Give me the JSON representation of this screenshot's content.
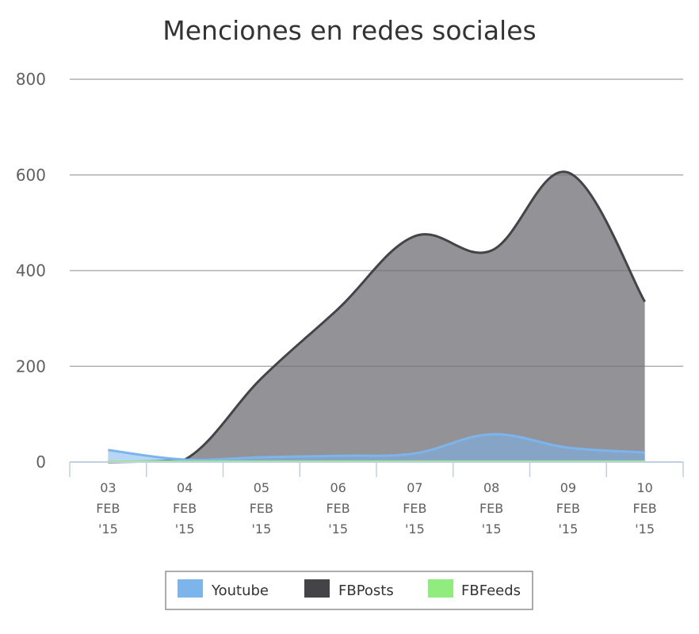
{
  "chart_data": {
    "type": "area",
    "title": "Menciones en redes sociales",
    "xlabel": "",
    "ylabel": "",
    "ylim": [
      0,
      800
    ],
    "yticks": [
      0,
      200,
      400,
      600,
      800
    ],
    "categories": [
      [
        "03",
        "FEB",
        "'15"
      ],
      [
        "04",
        "FEB",
        "'15"
      ],
      [
        "05",
        "FEB",
        "'15"
      ],
      [
        "06",
        "FEB",
        "'15"
      ],
      [
        "07",
        "FEB",
        "'15"
      ],
      [
        "08",
        "FEB",
        "'15"
      ],
      [
        "09",
        "FEB",
        "'15"
      ],
      [
        "10",
        "FEB",
        "'15"
      ]
    ],
    "series": [
      {
        "name": "FBPosts",
        "color": "#434348",
        "fill": "#6f6e74",
        "values": [
          0,
          5,
          175,
          320,
          472,
          442,
          605,
          335
        ]
      },
      {
        "name": "Youtube",
        "color": "#7cb5ec",
        "fill": "#7cb5ec",
        "values": [
          25,
          5,
          10,
          13,
          18,
          58,
          30,
          20
        ]
      },
      {
        "name": "FBFeeds",
        "color": "#90ed7d",
        "fill": "#90ed7d",
        "values": [
          1,
          1,
          1,
          1,
          1,
          1,
          1,
          1
        ]
      }
    ],
    "legend": {
      "position": "bottom-center",
      "items": [
        {
          "name": "Youtube",
          "color": "#7cb5ec"
        },
        {
          "name": "FBPosts",
          "color": "#434348"
        },
        {
          "name": "FBFeeds",
          "color": "#90ed7d"
        }
      ]
    },
    "grid": true
  }
}
